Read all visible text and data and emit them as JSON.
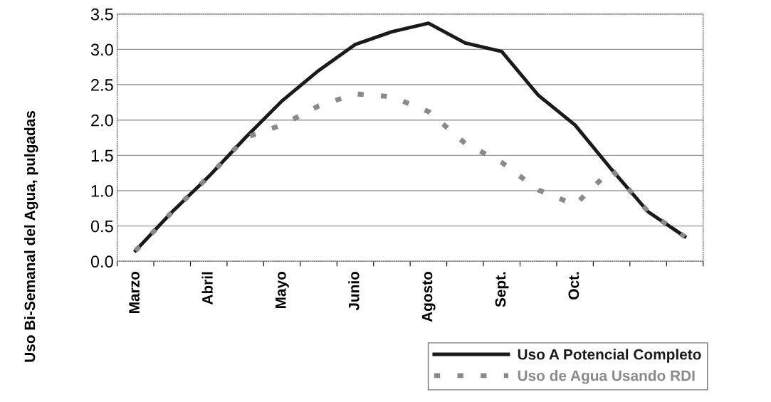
{
  "chart_data": {
    "type": "line",
    "ylabel": "Uso Bi-Semanal del Agua, pulgadas",
    "categories": [
      "Marzo",
      null,
      "Abril",
      null,
      "Mayo",
      null,
      "Junio",
      null,
      "Agosto",
      null,
      "Sept.",
      null,
      "Oct.",
      null,
      null,
      null
    ],
    "series": [
      {
        "name": "Uso A Potencial Completo",
        "color": "#1a1a1a",
        "line_style": "solid",
        "values": [
          0.15,
          0.7,
          1.2,
          1.75,
          2.27,
          2.7,
          3.07,
          3.25,
          3.37,
          3.09,
          2.97,
          2.35,
          1.93,
          1.3,
          0.7,
          0.35
        ]
      },
      {
        "name": "Uso de Agua Usando RDI",
        "color": "#8a8a8a",
        "line_style": "dashed",
        "values": [
          0.15,
          0.7,
          1.2,
          1.75,
          1.93,
          2.2,
          2.37,
          2.33,
          2.12,
          1.67,
          1.4,
          1.01,
          0.8,
          1.3,
          0.7,
          0.35
        ]
      }
    ],
    "ylim": [
      0,
      3.5
    ],
    "yticks": [
      {
        "value": 0,
        "label": "0.0"
      },
      {
        "value": 0.5,
        "label": "0.5"
      },
      {
        "value": 1,
        "label": "1.0"
      },
      {
        "value": 1.5,
        "label": "1.5"
      },
      {
        "value": 2,
        "label": "2.0"
      },
      {
        "value": 2.5,
        "label": "2.5"
      },
      {
        "value": 3,
        "label": "3.0"
      },
      {
        "value": 3.5,
        "label": "3.5"
      }
    ],
    "grid": "y",
    "legend": "bottom right",
    "marker": "none"
  }
}
